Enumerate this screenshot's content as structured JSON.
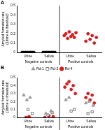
{
  "chart_data": [
    {
      "type": "scatter",
      "title": "A",
      "y_label": [
        "Amyloid formation rate",
        "(1/time to threshold)"
      ],
      "xlim": [
        0.5,
        4.5
      ],
      "xticks": [
        {
          "value": 1,
          "label": "Urine"
        },
        {
          "value": 2,
          "label": "Saliva"
        },
        {
          "value": 3,
          "label": "Urine"
        },
        {
          "value": 4,
          "label": "Saliva"
        }
      ],
      "groups": [
        {
          "label": "Negative controls",
          "xlim": [
            0.5,
            2.5
          ]
        },
        {
          "label": "Positive controls",
          "xlim": [
            2.5,
            4.5
          ]
        }
      ],
      "ylim": [
        0,
        0.5
      ],
      "yticks": [
        0,
        0.1,
        0.2,
        0.3,
        0.4,
        0.5
      ],
      "grid": false,
      "series": [
        {
          "color": "#000000",
          "marker": "circle",
          "x": [
            0.72,
            0.8,
            0.88,
            0.96,
            1.04,
            1.12,
            1.2,
            1.28,
            1.72,
            1.8,
            1.88,
            1.96,
            2.04,
            2.12,
            2.2,
            2.28
          ],
          "values": [
            0,
            0,
            0,
            0,
            0,
            0,
            0,
            0,
            0,
            0,
            0,
            0,
            0,
            0,
            0,
            0
          ]
        },
        {
          "color": "#d7191c",
          "marker": "circle",
          "x": [
            2.72,
            2.8,
            2.88,
            2.96,
            3.04,
            3.12,
            3.2,
            3.28,
            3.75,
            3.85,
            3.95,
            4.05,
            4.15,
            4.25
          ],
          "values": [
            0.18,
            0.2,
            0.15,
            0.22,
            0.17,
            0.19,
            0.16,
            0.21,
            0.12,
            0.2,
            0.14,
            0.18,
            0.1,
            0.16
          ]
        }
      ]
    },
    {
      "type": "scatter",
      "title": "B",
      "y_label": [
        "Amyloid formation rate",
        "(1/time to threshold)"
      ],
      "xlim": [
        0.5,
        4.5
      ],
      "xticks": [
        {
          "value": 1,
          "label": "Urine"
        },
        {
          "value": 2,
          "label": "Saliva"
        },
        {
          "value": 3,
          "label": "Urine"
        },
        {
          "value": 4,
          "label": "Saliva"
        }
      ],
      "groups": [
        {
          "label": "Negative controls",
          "xlim": [
            0.5,
            2.5
          ]
        },
        {
          "label": "Positive controls",
          "xlim": [
            2.5,
            4.5
          ]
        }
      ],
      "ylim": [
        0,
        0.5
      ],
      "yticks": [
        0,
        0.1,
        0.2,
        0.3,
        0.4,
        0.5
      ],
      "grid": false,
      "legend": "top",
      "series": [
        {
          "name": "Rd-1",
          "color": "#999999",
          "marker": "triangle",
          "x": [
            0.8,
            0.95,
            1.1,
            1.85,
            2.1,
            2.8,
            2.95,
            3.75,
            3.9,
            4.1
          ],
          "values": [
            0.28,
            0.22,
            0.25,
            0.05,
            0.08,
            0.22,
            0.25,
            0.18,
            0.2,
            0.15
          ]
        },
        {
          "name": "Rd-2",
          "color": "#555555",
          "marker": "open_square",
          "x": [
            1.0,
            1.2,
            1.95,
            2.15,
            3.05,
            3.2,
            3.85,
            4.05
          ],
          "values": [
            0.1,
            0.05,
            0.03,
            0.06,
            0.08,
            0.1,
            0.05,
            0.07
          ]
        },
        {
          "name": "Rd-4",
          "color": "#d7191c",
          "marker": "circle",
          "x": [
            0.9,
            1.05,
            1.8,
            2.0,
            2.2,
            2.75,
            2.85,
            2.95,
            3.05,
            3.15,
            3.25,
            3.75,
            3.85,
            3.95,
            4.05,
            4.15
          ],
          "values": [
            0.0,
            0.01,
            0.0,
            0.02,
            0.01,
            0.38,
            0.42,
            0.45,
            0.35,
            0.4,
            0.3,
            0.25,
            0.3,
            0.22,
            0.28,
            0.18
          ]
        }
      ]
    }
  ]
}
